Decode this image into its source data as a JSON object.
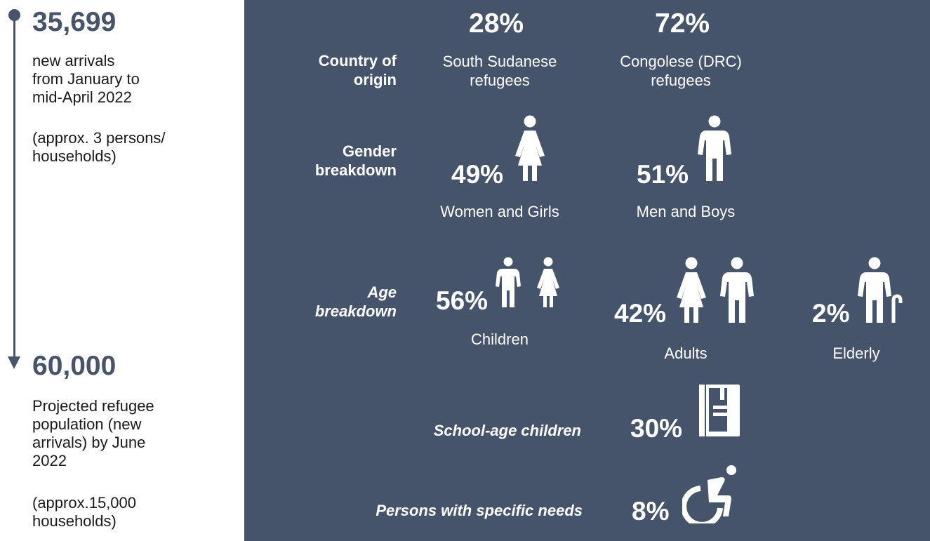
{
  "timeline": {
    "top": {
      "number": "35,699",
      "text": "new arrivals\nfrom January to\nmid-April 2022",
      "note": "(approx. 3 persons/\nhouseholds)"
    },
    "bottom": {
      "number": "60,000",
      "text": "Projected refugee\npopulation (new\narrivals) by June\n2022",
      "note": "(approx.15,000\nhouseholds)"
    }
  },
  "rows": {
    "country": {
      "label": "Country of\norigin",
      "items": [
        {
          "percent": "28%",
          "label": "South Sudanese\nrefugees"
        },
        {
          "percent": "72%",
          "label": "Congolese (DRC)\nrefugees"
        }
      ]
    },
    "gender": {
      "label": "Gender\nbreakdown",
      "items": [
        {
          "percent": "49%",
          "label": "Women and Girls",
          "icon": "woman-icon"
        },
        {
          "percent": "51%",
          "label": "Men and Boys",
          "icon": "man-icon"
        }
      ]
    },
    "age": {
      "label": "Age\nbreakdown",
      "items": [
        {
          "percent": "56%",
          "label": "Children",
          "icon": "children-icon"
        },
        {
          "percent": "42%",
          "label": "Adults",
          "icon": "adults-icon"
        },
        {
          "percent": "2%",
          "label": "Elderly",
          "icon": "elderly-icon"
        }
      ]
    },
    "school": {
      "label": "School-age children",
      "percent": "30%",
      "icon": "book-icon"
    },
    "needs": {
      "label": "Persons with specific needs",
      "percent": "8%",
      "icon": "wheelchair-icon"
    }
  },
  "colors": {
    "panel": "#46546b",
    "accent": "#475469",
    "text_on_panel": "#ffffff"
  }
}
